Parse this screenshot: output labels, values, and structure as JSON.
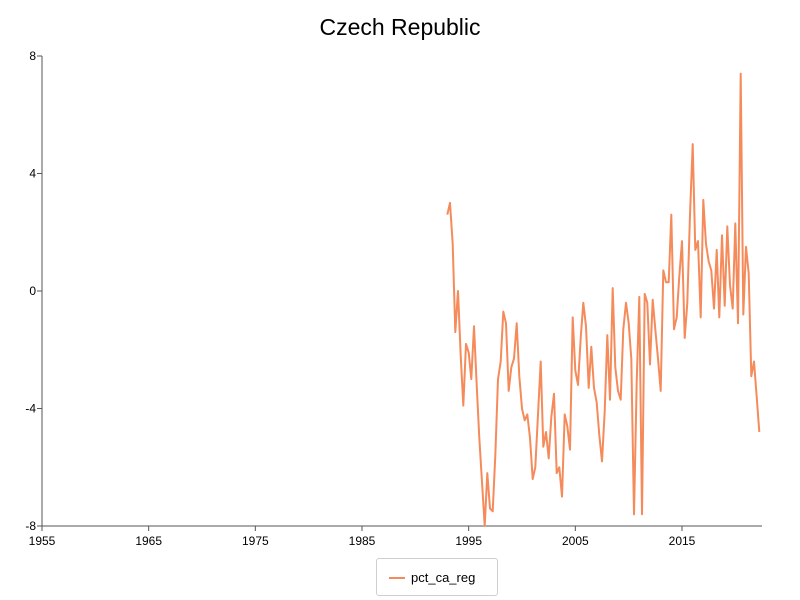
{
  "chart_data": {
    "type": "line",
    "title": "Czech Republic",
    "xlabel": "",
    "ylabel": "",
    "xlim": [
      1955,
      2022.5
    ],
    "ylim": [
      -8,
      8
    ],
    "x_ticks": [
      1955,
      1965,
      1975,
      1985,
      1995,
      2005,
      2015
    ],
    "y_ticks": [
      -8,
      -4,
      0,
      4,
      8
    ],
    "y_tick_labels": [
      "-8",
      "-4",
      "0",
      "4",
      "8"
    ],
    "grid": false,
    "legend_position": "bottom-center",
    "series": [
      {
        "name": "pct_ca_reg",
        "color": "#f58b5b",
        "points": [
          [
            1993.0,
            2.6
          ],
          [
            1993.25,
            3.0
          ],
          [
            1993.5,
            1.6
          ],
          [
            1993.75,
            -1.4
          ],
          [
            1994.0,
            0.0
          ],
          [
            1994.25,
            -2.2
          ],
          [
            1994.5,
            -3.9
          ],
          [
            1994.75,
            -1.8
          ],
          [
            1995.0,
            -2.1
          ],
          [
            1995.25,
            -3.0
          ],
          [
            1995.5,
            -1.2
          ],
          [
            1995.75,
            -3.2
          ],
          [
            1996.0,
            -5.0
          ],
          [
            1996.25,
            -6.5
          ],
          [
            1996.5,
            -8.0
          ],
          [
            1996.75,
            -6.2
          ],
          [
            1997.0,
            -7.4
          ],
          [
            1997.25,
            -7.5
          ],
          [
            1997.5,
            -5.6
          ],
          [
            1997.75,
            -3.0
          ],
          [
            1998.0,
            -2.4
          ],
          [
            1998.25,
            -0.7
          ],
          [
            1998.5,
            -1.1
          ],
          [
            1998.75,
            -3.4
          ],
          [
            1999.0,
            -2.6
          ],
          [
            1999.25,
            -2.3
          ],
          [
            1999.5,
            -1.1
          ],
          [
            1999.75,
            -2.9
          ],
          [
            2000.0,
            -4.0
          ],
          [
            2000.25,
            -4.4
          ],
          [
            2000.5,
            -4.2
          ],
          [
            2000.75,
            -5.0
          ],
          [
            2001.0,
            -6.4
          ],
          [
            2001.25,
            -6.0
          ],
          [
            2001.5,
            -4.2
          ],
          [
            2001.75,
            -2.4
          ],
          [
            2002.0,
            -5.3
          ],
          [
            2002.25,
            -4.8
          ],
          [
            2002.5,
            -5.7
          ],
          [
            2002.75,
            -4.3
          ],
          [
            2003.0,
            -3.5
          ],
          [
            2003.25,
            -6.2
          ],
          [
            2003.5,
            -6.0
          ],
          [
            2003.75,
            -7.0
          ],
          [
            2004.0,
            -4.2
          ],
          [
            2004.25,
            -4.6
          ],
          [
            2004.5,
            -5.4
          ],
          [
            2004.75,
            -0.9
          ],
          [
            2005.0,
            -2.7
          ],
          [
            2005.25,
            -3.2
          ],
          [
            2005.5,
            -1.6
          ],
          [
            2005.75,
            -0.4
          ],
          [
            2006.0,
            -1.2
          ],
          [
            2006.25,
            -3.3
          ],
          [
            2006.5,
            -1.9
          ],
          [
            2006.75,
            -3.3
          ],
          [
            2007.0,
            -3.8
          ],
          [
            2007.25,
            -4.9
          ],
          [
            2007.5,
            -5.8
          ],
          [
            2007.75,
            -4.1
          ],
          [
            2008.0,
            -1.5
          ],
          [
            2008.25,
            -3.7
          ],
          [
            2008.5,
            0.1
          ],
          [
            2008.75,
            -2.6
          ],
          [
            2009.0,
            -3.4
          ],
          [
            2009.25,
            -3.7
          ],
          [
            2009.5,
            -1.3
          ],
          [
            2009.75,
            -0.4
          ],
          [
            2010.0,
            -1.1
          ],
          [
            2010.25,
            -2.3
          ],
          [
            2010.5,
            -7.6
          ],
          [
            2010.75,
            -3.1
          ],
          [
            2011.0,
            -0.2
          ],
          [
            2011.25,
            -7.6
          ],
          [
            2011.5,
            -0.1
          ],
          [
            2011.75,
            -0.4
          ],
          [
            2012.0,
            -2.5
          ],
          [
            2012.25,
            -0.3
          ],
          [
            2012.5,
            -1.3
          ],
          [
            2012.75,
            -2.3
          ],
          [
            2013.0,
            -3.4
          ],
          [
            2013.25,
            0.7
          ],
          [
            2013.5,
            0.3
          ],
          [
            2013.75,
            0.3
          ],
          [
            2014.0,
            2.6
          ],
          [
            2014.25,
            -1.3
          ],
          [
            2014.5,
            -0.9
          ],
          [
            2014.75,
            0.5
          ],
          [
            2015.0,
            1.7
          ],
          [
            2015.25,
            -1.6
          ],
          [
            2015.5,
            -0.4
          ],
          [
            2015.75,
            2.6
          ],
          [
            2016.0,
            5.0
          ],
          [
            2016.25,
            1.4
          ],
          [
            2016.5,
            1.7
          ],
          [
            2016.75,
            -0.9
          ],
          [
            2017.0,
            3.1
          ],
          [
            2017.25,
            1.6
          ],
          [
            2017.5,
            1.0
          ],
          [
            2017.75,
            0.7
          ],
          [
            2018.0,
            -0.6
          ],
          [
            2018.25,
            1.4
          ],
          [
            2018.5,
            -0.9
          ],
          [
            2018.75,
            1.9
          ],
          [
            2019.0,
            -0.5
          ],
          [
            2019.25,
            2.2
          ],
          [
            2019.5,
            0.2
          ],
          [
            2019.75,
            -0.6
          ],
          [
            2020.0,
            2.3
          ],
          [
            2020.25,
            -1.1
          ],
          [
            2020.5,
            7.4
          ],
          [
            2020.75,
            -0.8
          ],
          [
            2021.0,
            1.5
          ],
          [
            2021.25,
            0.6
          ],
          [
            2021.5,
            -2.9
          ],
          [
            2021.75,
            -2.4
          ],
          [
            2022.0,
            -3.6
          ],
          [
            2022.25,
            -4.8
          ]
        ]
      }
    ]
  }
}
